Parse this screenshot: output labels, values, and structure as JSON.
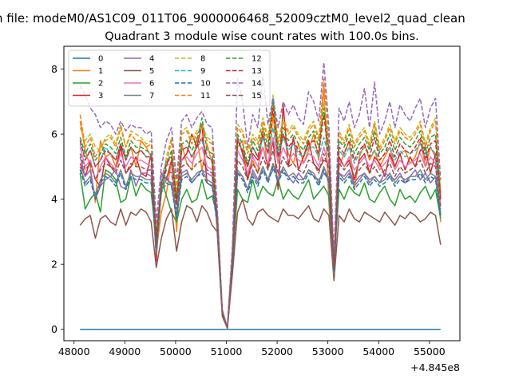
{
  "page": {
    "suptitle": "n file: modeM0/AS1C09_011T06_9000006468_52009cztM0_level2_quad_clean"
  },
  "chart_data": {
    "type": "line",
    "title": "Quadrant 3 module wise count rates with 100.0s bins.",
    "xlabel": "",
    "ylabel": "",
    "x_offset_label": "+4.845e8",
    "xlim": [
      47800,
      55600
    ],
    "ylim": [
      -0.35,
      8.7
    ],
    "xticks": [
      48000,
      49000,
      50000,
      51000,
      52000,
      53000,
      54000,
      55000
    ],
    "yticks": [
      0,
      2,
      4,
      6,
      8
    ],
    "grid": false,
    "legend_position": "top-left",
    "legend_columns": 4,
    "x_start": 48120,
    "x_step": 100,
    "series": [
      {
        "name": "0",
        "color": "#1f77b4",
        "dash": "solid",
        "values": [
          0,
          0,
          0,
          0,
          0,
          0,
          0,
          0,
          0,
          0,
          0,
          0,
          0,
          0,
          0,
          0,
          0,
          0,
          0,
          0,
          0,
          0,
          0,
          0,
          0,
          0,
          0,
          0,
          0,
          0,
          0,
          0,
          0,
          0,
          0,
          0,
          0,
          0,
          0,
          0,
          0,
          0,
          0,
          0,
          0,
          0,
          0,
          0,
          0,
          0,
          0,
          0,
          0,
          0,
          0,
          0,
          0,
          0,
          0,
          0,
          0,
          0,
          0,
          0,
          0,
          0,
          0,
          0,
          0,
          0,
          0,
          0
        ]
      },
      {
        "name": "1",
        "color": "#ff7f0e",
        "dash": "solid",
        "values": [
          6.4,
          5.5,
          5.0,
          3.9,
          5.8,
          5.3,
          5.4,
          5.0,
          5.6,
          5.3,
          5.6,
          5.0,
          5.8,
          5.6,
          5.3,
          2.4,
          3.6,
          4.2,
          5.2,
          3.0,
          5.7,
          5.1,
          4.9,
          5.9,
          4.9,
          5.7,
          5.1,
          3.0,
          0.5,
          0.05,
          1.8,
          5.6,
          5.8,
          4.6,
          5.2,
          4.8,
          6.2,
          4.9,
          6.6,
          5.1,
          6.0,
          5.4,
          5.1,
          5.7,
          5.1,
          5.5,
          6.0,
          5.2,
          7.5,
          3.9,
          1.6,
          5.0,
          5.4,
          5.8,
          4.3,
          5.3,
          5.7,
          5.2,
          5.5,
          5.0,
          5.3,
          5.6,
          5.0,
          5.4,
          5.5,
          5.1,
          5.3,
          5.8,
          5.0,
          5.6,
          5.3,
          3.3
        ]
      },
      {
        "name": "2",
        "color": "#2ca02c",
        "dash": "solid",
        "values": [
          4.8,
          3.7,
          4.0,
          4.2,
          3.6,
          4.9,
          4.8,
          4.6,
          3.9,
          4.0,
          4.7,
          4.1,
          4.5,
          4.3,
          4.2,
          2.7,
          4.6,
          4.1,
          3.6,
          3.3,
          4.0,
          4.3,
          3.9,
          4.0,
          4.6,
          4.0,
          4.1,
          3.5,
          0.6,
          0.04,
          2.0,
          4.3,
          4.0,
          3.9,
          4.6,
          4.0,
          4.4,
          4.2,
          4.1,
          4.6,
          4.0,
          4.3,
          4.1,
          4.0,
          4.3,
          4.6,
          4.0,
          4.2,
          4.4,
          4.1,
          2.0,
          4.3,
          4.0,
          4.4,
          4.2,
          4.1,
          4.5,
          4.0,
          3.9,
          4.2,
          4.4,
          4.0,
          3.8,
          4.3,
          4.0,
          4.1,
          3.9,
          4.2,
          4.4,
          4.0,
          4.3,
          3.4
        ]
      },
      {
        "name": "3",
        "color": "#d62728",
        "dash": "solid",
        "values": [
          5.1,
          4.7,
          5.2,
          4.6,
          4.4,
          5.3,
          5.0,
          4.9,
          5.6,
          4.8,
          5.0,
          5.3,
          4.8,
          4.7,
          5.4,
          2.1,
          4.8,
          4.6,
          5.2,
          4.0,
          5.2,
          5.4,
          6.0,
          5.6,
          6.3,
          4.5,
          4.4,
          3.6,
          0.5,
          0.03,
          2.2,
          5.9,
          5.4,
          4.6,
          5.4,
          5.2,
          5.6,
          5.0,
          5.8,
          4.3,
          6.9,
          5.0,
          5.9,
          4.9,
          5.3,
          5.8,
          5.1,
          4.9,
          5.2,
          5.1,
          1.7,
          5.3,
          5.0,
          5.2,
          4.6,
          5.2,
          5.4,
          4.8,
          5.3,
          5.1,
          4.7,
          5.4,
          5.0,
          5.4,
          4.9,
          5.3,
          5.0,
          5.5,
          5.6,
          4.8,
          5.4,
          3.8
        ]
      },
      {
        "name": "4",
        "color": "#9467bd",
        "dash": "solid",
        "values": [
          5.3,
          4.7,
          4.9,
          4.0,
          4.4,
          4.6,
          4.7,
          4.9,
          4.4,
          4.3,
          4.9,
          4.4,
          4.8,
          4.8,
          4.7,
          2.6,
          4.4,
          4.7,
          4.4,
          3.5,
          4.8,
          4.9,
          4.5,
          4.7,
          4.9,
          4.8,
          4.7,
          3.3,
          0.5,
          0.05,
          2.1,
          4.8,
          4.7,
          4.3,
          4.9,
          4.6,
          5.0,
          4.6,
          4.9,
          4.9,
          4.8,
          4.7,
          4.5,
          4.8,
          4.6,
          4.9,
          4.7,
          4.6,
          4.8,
          4.6,
          1.9,
          4.8,
          4.7,
          4.9,
          4.5,
          4.7,
          4.8,
          4.6,
          4.7,
          4.5,
          4.8,
          4.7,
          4.6,
          4.8,
          4.5,
          4.7,
          4.9,
          4.6,
          4.8,
          4.5,
          4.7,
          3.6
        ]
      },
      {
        "name": "5",
        "color": "#8c564b",
        "dash": "solid",
        "values": [
          3.2,
          3.4,
          3.5,
          2.8,
          3.4,
          3.5,
          3.3,
          3.2,
          3.7,
          3.2,
          3.6,
          3.5,
          3.7,
          3.6,
          3.3,
          1.9,
          2.8,
          3.4,
          3.7,
          2.4,
          3.3,
          3.8,
          3.7,
          3.3,
          3.8,
          3.6,
          3.2,
          3.0,
          0.4,
          0.03,
          1.7,
          3.6,
          4.0,
          3.4,
          3.2,
          3.6,
          3.7,
          3.5,
          3.4,
          3.3,
          3.7,
          3.5,
          3.5,
          3.4,
          3.6,
          3.8,
          3.4,
          3.3,
          3.7,
          3.5,
          1.5,
          3.5,
          3.3,
          3.7,
          3.4,
          3.3,
          3.6,
          3.5,
          3.4,
          3.3,
          3.6,
          3.4,
          3.2,
          3.5,
          3.4,
          3.6,
          3.5,
          3.3,
          3.4,
          3.6,
          3.5,
          2.6
        ]
      },
      {
        "name": "6",
        "color": "#e377c2",
        "dash": "solid",
        "values": [
          5.6,
          5.0,
          5.2,
          4.6,
          5.0,
          5.3,
          5.1,
          4.9,
          5.4,
          5.0,
          5.3,
          5.2,
          5.2,
          5.1,
          5.0,
          2.7,
          4.7,
          5.1,
          5.0,
          3.8,
          5.2,
          5.3,
          5.1,
          5.4,
          5.6,
          5.0,
          4.9,
          3.5,
          0.5,
          0.05,
          2.2,
          5.5,
          5.2,
          4.8,
          5.3,
          5.0,
          5.6,
          5.1,
          5.9,
          5.1,
          5.6,
          5.2,
          5.4,
          5.2,
          5.1,
          5.4,
          5.3,
          5.0,
          5.6,
          5.0,
          1.9,
          5.2,
          5.0,
          5.3,
          4.9,
          5.1,
          5.3,
          5.0,
          5.2,
          4.9,
          5.1,
          5.3,
          4.9,
          5.2,
          5.0,
          5.1,
          5.2,
          5.4,
          5.0,
          5.3,
          5.1,
          3.8
        ]
      },
      {
        "name": "7",
        "color": "#7f7f7f",
        "dash": "solid",
        "values": [
          5.0,
          4.5,
          4.7,
          4.1,
          4.6,
          4.8,
          4.7,
          4.5,
          4.9,
          4.4,
          4.8,
          4.7,
          4.7,
          4.6,
          4.6,
          2.3,
          4.3,
          4.6,
          4.5,
          3.4,
          4.7,
          4.8,
          4.6,
          4.8,
          4.9,
          4.6,
          4.5,
          3.2,
          0.5,
          0.04,
          2.0,
          4.9,
          4.7,
          4.3,
          4.8,
          4.5,
          5.0,
          4.6,
          5.1,
          4.6,
          5.0,
          4.7,
          4.8,
          4.6,
          4.6,
          4.9,
          4.8,
          4.5,
          5.0,
          4.6,
          1.7,
          4.8,
          4.6,
          4.8,
          4.4,
          4.6,
          4.8,
          4.5,
          4.7,
          4.5,
          4.6,
          4.8,
          4.5,
          4.7,
          4.6,
          4.7,
          4.7,
          4.9,
          4.6,
          4.8,
          4.7,
          3.5
        ]
      },
      {
        "name": "8",
        "color": "#bcbd22",
        "dash": "dashed",
        "values": [
          6.2,
          5.8,
          6.0,
          5.6,
          5.5,
          5.9,
          6.0,
          5.7,
          6.3,
          5.6,
          6.1,
          6.0,
          5.9,
          5.7,
          5.8,
          3.2,
          4.3,
          5.3,
          5.9,
          4.3,
          6.1,
          6.2,
          5.8,
          6.1,
          6.3,
          5.9,
          5.8,
          3.6,
          0.5,
          0.05,
          2.4,
          6.3,
          6.1,
          5.5,
          6.0,
          5.8,
          6.5,
          5.9,
          7.2,
          5.8,
          6.5,
          6.1,
          6.3,
          6.0,
          5.8,
          6.2,
          6.4,
          5.9,
          7.0,
          5.8,
          2.1,
          6.1,
          5.8,
          6.3,
          5.7,
          6.0,
          6.2,
          5.7,
          6.4,
          5.6,
          5.9,
          6.3,
          5.8,
          6.2,
          6.0,
          5.9,
          6.1,
          6.4,
          5.7,
          6.2,
          6.5,
          4.3
        ]
      },
      {
        "name": "9",
        "color": "#17becf",
        "dash": "dashed",
        "values": [
          5.7,
          5.3,
          5.5,
          5.0,
          5.2,
          5.6,
          5.4,
          5.2,
          5.7,
          5.2,
          5.6,
          5.4,
          5.5,
          5.3,
          5.3,
          2.8,
          4.6,
          5.2,
          5.3,
          3.9,
          5.5,
          5.6,
          5.3,
          5.6,
          5.8,
          5.3,
          5.2,
          3.4,
          0.5,
          0.05,
          2.3,
          5.8,
          5.5,
          5.0,
          5.6,
          5.3,
          5.9,
          5.4,
          6.2,
          5.3,
          5.9,
          5.5,
          5.7,
          5.4,
          5.3,
          5.6,
          5.6,
          5.3,
          5.9,
          5.3,
          2.0,
          5.5,
          5.3,
          5.6,
          5.1,
          5.4,
          5.6,
          5.3,
          5.5,
          5.2,
          5.4,
          5.6,
          5.2,
          5.5,
          5.3,
          5.4,
          5.5,
          5.7,
          5.3,
          5.6,
          5.4,
          4.0
        ]
      },
      {
        "name": "10",
        "color": "#1f77b4",
        "dash": "dashed",
        "values": [
          4.9,
          4.4,
          4.6,
          4.0,
          4.5,
          4.7,
          4.6,
          4.4,
          4.8,
          4.3,
          4.7,
          4.6,
          4.6,
          4.5,
          4.5,
          2.5,
          4.2,
          4.5,
          4.4,
          3.4,
          4.6,
          4.7,
          4.5,
          4.7,
          4.8,
          4.5,
          4.4,
          3.2,
          0.5,
          0.04,
          2.0,
          4.8,
          4.6,
          4.2,
          4.7,
          4.4,
          4.9,
          4.5,
          5.0,
          4.5,
          4.9,
          4.6,
          4.7,
          4.5,
          4.5,
          4.8,
          4.7,
          4.4,
          4.9,
          4.5,
          1.8,
          4.7,
          4.5,
          4.7,
          4.3,
          4.5,
          4.7,
          4.4,
          4.6,
          4.4,
          4.5,
          4.7,
          4.4,
          4.6,
          4.5,
          4.6,
          4.6,
          4.8,
          4.5,
          4.7,
          4.6,
          3.5
        ]
      },
      {
        "name": "11",
        "color": "#ff7f0e",
        "dash": "dashed",
        "values": [
          6.6,
          5.6,
          5.9,
          5.3,
          5.6,
          5.8,
          5.9,
          5.6,
          6.2,
          5.6,
          6.0,
          5.8,
          5.8,
          5.6,
          5.7,
          3.0,
          4.4,
          5.1,
          5.8,
          4.2,
          6.0,
          6.1,
          5.7,
          6.0,
          6.2,
          5.8,
          5.7,
          3.5,
          0.5,
          0.05,
          2.3,
          6.2,
          6.0,
          5.4,
          5.9,
          5.7,
          6.4,
          5.8,
          7.0,
          5.7,
          6.4,
          6.0,
          6.2,
          5.9,
          5.7,
          6.1,
          6.3,
          5.8,
          7.7,
          5.7,
          2.0,
          6.0,
          5.7,
          6.2,
          5.6,
          5.9,
          6.1,
          5.6,
          6.3,
          5.5,
          5.8,
          6.2,
          5.7,
          6.1,
          5.9,
          5.8,
          6.0,
          6.3,
          5.6,
          6.1,
          6.4,
          4.2
        ]
      },
      {
        "name": "12",
        "color": "#2ca02c",
        "dash": "dashed",
        "values": [
          5.9,
          5.4,
          5.7,
          5.2,
          5.4,
          5.7,
          5.6,
          5.4,
          5.9,
          5.3,
          5.8,
          5.6,
          5.6,
          5.5,
          5.4,
          2.9,
          4.2,
          5.0,
          5.5,
          4.0,
          5.7,
          5.8,
          5.5,
          5.8,
          6.5,
          5.5,
          5.4,
          3.4,
          0.5,
          0.05,
          2.3,
          6.0,
          5.7,
          5.1,
          5.8,
          5.5,
          6.2,
          5.6,
          7.1,
          5.5,
          6.2,
          5.8,
          6.0,
          5.7,
          5.5,
          5.9,
          6.1,
          5.6,
          6.8,
          5.5,
          1.9,
          5.8,
          5.6,
          6.0,
          5.4,
          5.7,
          5.9,
          5.5,
          6.1,
          5.4,
          5.6,
          6.0,
          5.5,
          5.9,
          5.7,
          5.6,
          5.8,
          6.1,
          5.4,
          5.9,
          6.0,
          4.1
        ]
      },
      {
        "name": "13",
        "color": "#d62728",
        "dash": "dashed",
        "values": [
          5.8,
          5.2,
          5.5,
          5.0,
          5.2,
          5.5,
          5.4,
          5.2,
          5.7,
          5.2,
          5.6,
          5.4,
          5.5,
          5.3,
          5.3,
          2.8,
          4.4,
          5.1,
          5.3,
          3.9,
          5.5,
          5.6,
          5.3,
          5.6,
          5.9,
          5.3,
          5.2,
          3.4,
          0.5,
          0.05,
          2.2,
          5.8,
          5.5,
          5.0,
          5.6,
          5.3,
          6.0,
          5.4,
          6.8,
          5.3,
          6.0,
          5.6,
          5.8,
          5.5,
          5.3,
          5.7,
          5.8,
          5.4,
          6.6,
          5.3,
          1.9,
          5.6,
          5.4,
          5.8,
          5.2,
          5.5,
          5.7,
          5.3,
          5.9,
          5.2,
          5.4,
          5.8,
          5.3,
          5.7,
          5.5,
          5.4,
          5.6,
          5.9,
          5.2,
          5.7,
          5.8,
          4.0
        ]
      },
      {
        "name": "14",
        "color": "#9467bd",
        "dash": "dashed",
        "values": [
          7.5,
          7.2,
          6.8,
          6.6,
          6.2,
          6.4,
          6.3,
          6.0,
          6.4,
          6.1,
          6.3,
          6.2,
          6.2,
          6.0,
          6.1,
          3.3,
          5.0,
          5.8,
          6.2,
          4.6,
          6.4,
          6.6,
          6.2,
          6.5,
          6.7,
          6.3,
          6.2,
          3.8,
          0.6,
          0.06,
          2.6,
          7.7,
          7.0,
          5.6,
          6.6,
          6.2,
          7.8,
          6.3,
          7.1,
          6.2,
          7.0,
          6.6,
          6.9,
          6.5,
          6.3,
          7.3,
          7.0,
          6.4,
          8.2,
          6.2,
          2.2,
          6.8,
          6.4,
          7.0,
          6.2,
          6.6,
          7.4,
          6.2,
          7.6,
          6.0,
          6.4,
          7.0,
          6.2,
          6.9,
          6.6,
          6.4,
          6.8,
          7.1,
          6.2,
          6.8,
          7.1,
          4.6
        ]
      },
      {
        "name": "15",
        "color": "#8c564b",
        "dash": "dashed",
        "values": [
          5.4,
          4.9,
          5.1,
          4.6,
          4.9,
          5.1,
          5.0,
          4.8,
          5.2,
          4.8,
          5.1,
          5.0,
          5.0,
          4.9,
          4.9,
          2.6,
          4.5,
          4.9,
          4.8,
          3.7,
          5.0,
          5.1,
          4.9,
          5.1,
          5.2,
          4.9,
          4.8,
          3.4,
          0.5,
          0.05,
          2.1,
          5.2,
          5.0,
          4.6,
          5.1,
          4.8,
          5.3,
          4.9,
          5.5,
          4.8,
          5.3,
          5.0,
          5.1,
          4.9,
          4.8,
          5.2,
          5.1,
          4.8,
          5.4,
          4.9,
          1.9,
          5.1,
          4.9,
          5.1,
          4.7,
          4.9,
          5.1,
          4.8,
          5.0,
          4.7,
          4.9,
          5.1,
          4.7,
          5.0,
          4.8,
          4.9,
          5.0,
          5.2,
          4.8,
          5.1,
          5.0,
          3.7
        ]
      }
    ]
  }
}
